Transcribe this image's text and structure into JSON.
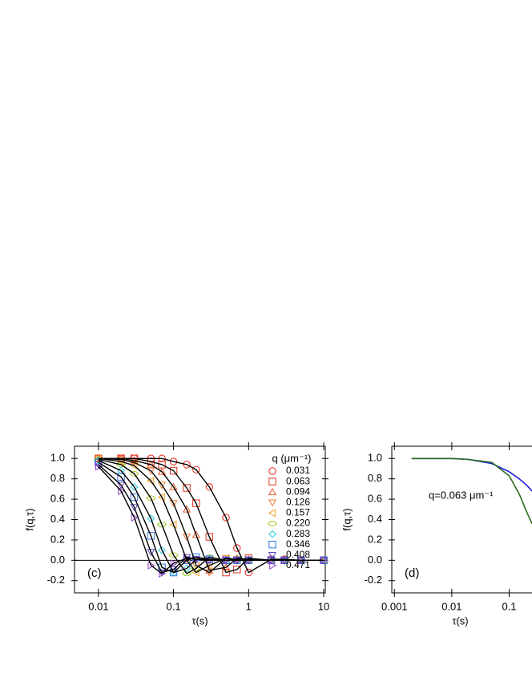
{
  "chart_data": [
    {
      "type": "scatter",
      "panel_label": "(c)",
      "xlabel": "τ(s)",
      "ylabel": "f(q,τ)",
      "xscale": "log",
      "xlim": [
        0.0048,
        10.5
      ],
      "xticks": [
        0.01,
        0.1,
        1,
        10
      ],
      "ylim": [
        -0.32,
        1.12
      ],
      "yticks": [
        {
          "value": -0.2,
          "label": "-0.2"
        },
        {
          "value": 0,
          "label": "0.0"
        },
        0.2,
        0.4,
        0.6,
        0.8,
        {
          "value": 1,
          "label": "1.0"
        }
      ],
      "zero_line": true,
      "line_color": "#000000",
      "legend_title": "q (μm⁻¹)",
      "legend": "upper right",
      "x": [
        0.01,
        0.02,
        0.03,
        0.05,
        0.07,
        0.1,
        0.15,
        0.2,
        0.3,
        0.5,
        0.7,
        1,
        2,
        3,
        5,
        10
      ],
      "series": [
        {
          "name": "0.031",
          "color": "#e8201a",
          "marker": "circle",
          "values": [
            1,
            1,
            1,
            1,
            1,
            0.97,
            0.94,
            0.89,
            0.72,
            0.42,
            0.12,
            -0.12,
            0.01,
            0.01,
            0,
            0
          ]
        },
        {
          "name": "0.063",
          "color": "#e0301c",
          "marker": "square",
          "values": [
            1,
            1,
            1,
            0.97,
            0.94,
            0.88,
            0.71,
            0.56,
            0.23,
            -0.12,
            -0.09,
            0.02,
            0,
            0,
            0,
            0
          ]
        },
        {
          "name": "0.094",
          "color": "#f05a28",
          "marker": "triangle-up",
          "values": [
            1,
            1,
            0.98,
            0.94,
            0.87,
            0.72,
            0.5,
            0.25,
            -0.1,
            -0.07,
            0.02,
            0.01,
            0,
            0,
            0,
            0
          ]
        },
        {
          "name": "0.126",
          "color": "#f07a30",
          "marker": "triangle-down",
          "values": [
            1,
            0.99,
            0.96,
            0.88,
            0.74,
            0.56,
            0.23,
            -0.05,
            -0.12,
            0.02,
            0.01,
            0,
            0,
            0,
            0,
            0
          ]
        },
        {
          "name": "0.157",
          "color": "#f0a020",
          "marker": "triangle-left",
          "values": [
            1,
            0.97,
            0.93,
            0.78,
            0.62,
            0.35,
            0,
            -0.12,
            -0.05,
            0.02,
            0,
            0,
            0,
            0,
            0,
            0
          ]
        },
        {
          "name": "0.220",
          "color": "#a0cc20",
          "marker": "lens",
          "values": [
            0.99,
            0.94,
            0.85,
            0.61,
            0.35,
            0.05,
            -0.13,
            -0.08,
            0.03,
            0,
            0,
            0,
            0,
            0,
            0,
            0
          ]
        },
        {
          "name": "0.283",
          "color": "#20d0e0",
          "marker": "diamond",
          "values": [
            0.98,
            0.88,
            0.72,
            0.41,
            0.1,
            -0.12,
            -0.08,
            0.01,
            0.01,
            0,
            0,
            0,
            0,
            0,
            0,
            0
          ]
        },
        {
          "name": "0.346",
          "color": "#3070e0",
          "marker": "square",
          "values": [
            0.96,
            0.82,
            0.62,
            0.24,
            -0.07,
            -0.12,
            0,
            0.03,
            0.01,
            0,
            0,
            0,
            0,
            0,
            0,
            0
          ]
        },
        {
          "name": "0.408",
          "color": "#6040c0",
          "marker": "triangle-down",
          "values": [
            0.94,
            0.74,
            0.52,
            0.08,
            -0.12,
            -0.09,
            0.03,
            0.01,
            0,
            0,
            0,
            0,
            0,
            0,
            0,
            0
          ]
        },
        {
          "name": "0.471",
          "color": "#9040c8",
          "marker": "triangle-right",
          "values": [
            0.92,
            0.68,
            0.42,
            -0.05,
            -0.13,
            -0.03,
            0.02,
            0.01,
            0,
            0,
            0,
            0,
            0,
            0,
            0,
            0
          ]
        }
      ]
    },
    {
      "type": "line",
      "panel_label": "(d)",
      "xlabel": "τ(s)",
      "ylabel": "f(q,τ)",
      "xscale": "log",
      "annotation": "q=0.063 μm⁻¹",
      "xlim": [
        0.0009,
        0.25
      ],
      "xticks": [
        0.001,
        0.01,
        0.1
      ],
      "ylim": [
        -0.32,
        1.12
      ],
      "yticks": [
        {
          "value": -0.2,
          "label": "-0.2"
        },
        {
          "value": 0,
          "label": "0.0"
        },
        0.2,
        0.4,
        0.6,
        0.8,
        {
          "value": 1,
          "label": "1.0"
        }
      ],
      "x": [
        0.002,
        0.005,
        0.01,
        0.02,
        0.05,
        0.1,
        0.15,
        0.2,
        0.25
      ],
      "series": [
        {
          "color": "#1a1ae0",
          "values": [
            1,
            1,
            1,
            0.99,
            0.95,
            0.87,
            0.8,
            0.74,
            0.68
          ]
        },
        {
          "color": "#2a6a1e",
          "values": [
            1,
            1,
            1,
            0.99,
            0.96,
            0.83,
            0.65,
            0.48,
            0.36
          ]
        }
      ]
    }
  ]
}
